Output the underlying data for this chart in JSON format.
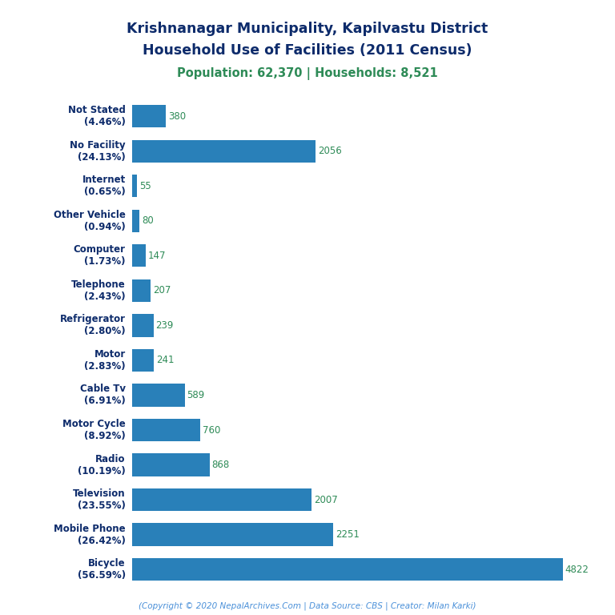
{
  "title_line1": "Krishnanagar Municipality, Kapilvastu District",
  "title_line2": "Household Use of Facilities (2011 Census)",
  "subtitle": "Population: 62,370 | Households: 8,521",
  "footer": "(Copyright © 2020 NepalArchives.Com | Data Source: CBS | Creator: Milan Karki)",
  "categories": [
    "Not Stated\n(4.46%)",
    "No Facility\n(24.13%)",
    "Internet\n(0.65%)",
    "Other Vehicle\n(0.94%)",
    "Computer\n(1.73%)",
    "Telephone\n(2.43%)",
    "Refrigerator\n(2.80%)",
    "Motor\n(2.83%)",
    "Cable Tv\n(6.91%)",
    "Motor Cycle\n(8.92%)",
    "Radio\n(10.19%)",
    "Television\n(23.55%)",
    "Mobile Phone\n(26.42%)",
    "Bicycle\n(56.59%)"
  ],
  "values": [
    380,
    2056,
    55,
    80,
    147,
    207,
    239,
    241,
    589,
    760,
    868,
    2007,
    2251,
    4822
  ],
  "bar_color": "#2980b9",
  "title_color": "#0d2b6b",
  "subtitle_color": "#2e8b57",
  "value_color": "#2e8b57",
  "footer_color": "#4a90d9",
  "background_color": "#ffffff",
  "xlim": [
    0,
    5200
  ],
  "bar_height": 0.65,
  "label_fontsize": 8.5,
  "value_fontsize": 8.5,
  "title_fontsize": 12.5,
  "subtitle_fontsize": 10.5
}
